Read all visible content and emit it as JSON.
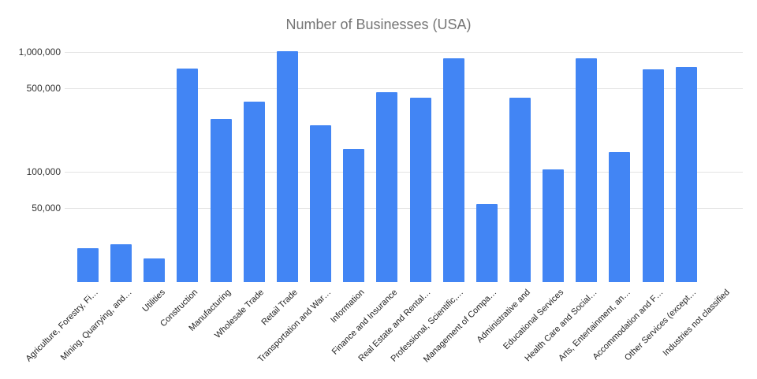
{
  "chart_data": {
    "type": "bar",
    "title": "Number of Businesses (USA)",
    "title_color": "#757575",
    "bar_color": "#4285F4",
    "gridline_color": "#e4e4e4",
    "y_axis_label_color": "#333333",
    "x_axis_label_color": "#222222",
    "y_axis": {
      "scale": "log",
      "ticks": [
        {
          "label": "1,000,000",
          "value": 1000000
        },
        {
          "label": "500,000",
          "value": 500000
        },
        {
          "label": "100,000",
          "value": 100000
        },
        {
          "label": "50,000",
          "value": 50000
        }
      ]
    },
    "categories": [
      "Agriculture, Forestry, Fi…",
      "Mining, Quarrying, and…",
      "Utilities",
      "Construction",
      "Manufacturing",
      "Wholesale Trade",
      "Retail Trade",
      "Transportation and War…",
      "Information",
      "Finance and Insurance",
      "Real Estate and Rental…",
      "Professional, Scientific,…",
      "Management of Compa…",
      "Administrative and",
      "Educational Services",
      "Health Care and Social…",
      "Arts, Entertainment, an…",
      "Accommodation and F…",
      "Other Services (except…",
      "Industries not classified"
    ],
    "values": [
      23000,
      25000,
      19000,
      730000,
      275000,
      385000,
      1020000,
      245000,
      155000,
      465000,
      415000,
      885000,
      54000,
      415000,
      105000,
      880000,
      145000,
      715000,
      750000,
      null
    ]
  }
}
